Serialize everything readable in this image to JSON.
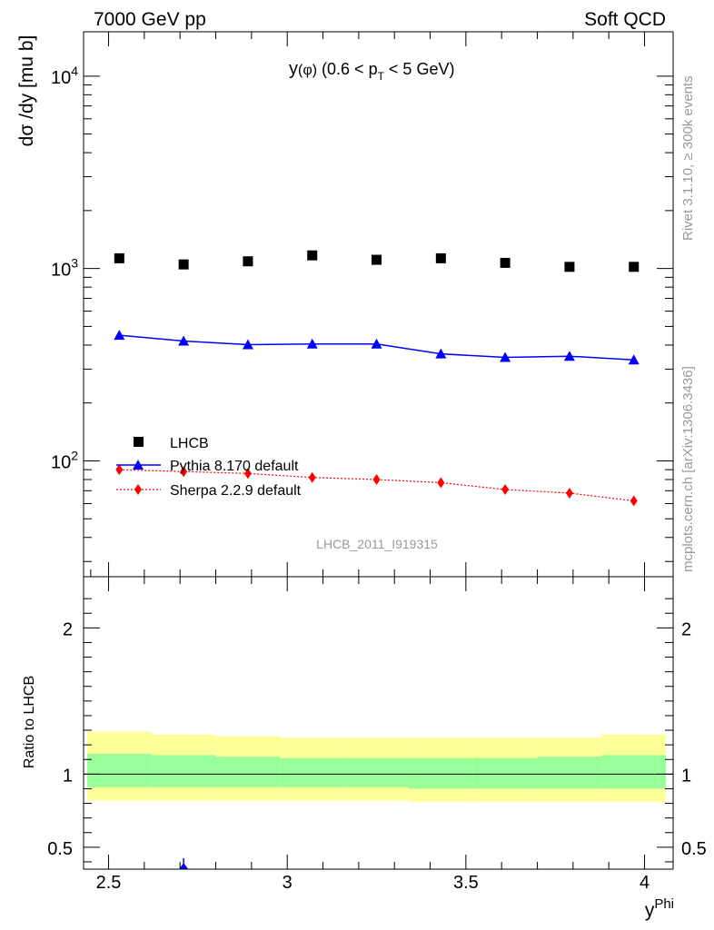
{
  "header": {
    "left": "7000 GeV pp",
    "right": "Soft QCD"
  },
  "side_labels": {
    "rivet": "Rivet 3.1.10, ≥ 300k events",
    "mcplots": "mcplots.cern.ch [arXiv:1306.3436]"
  },
  "chart_data": [
    {
      "type": "scatter",
      "panel": "main",
      "title": "y(φ) (0.6 < p_T < 5 GeV)",
      "title_parts": {
        "y": "y",
        "phi": "(φ)",
        "range_a": " (0.6 < p",
        "sub": "T",
        "range_b": " < 5 GeV)"
      },
      "ylabel": "dσ /dy [mu b]",
      "yscale": "log",
      "ylim": [
        25,
        17000
      ],
      "xlim": [
        2.43,
        4.08
      ],
      "ytick_labels": [
        {
          "value": 100,
          "base": "10",
          "exp": "2"
        },
        {
          "value": 1000,
          "base": "10",
          "exp": "3"
        },
        {
          "value": 10000,
          "base": "10",
          "exp": "4"
        }
      ],
      "analysis_label": "LHCB_2011_I919315",
      "x": [
        2.53,
        2.71,
        2.89,
        3.07,
        3.25,
        3.43,
        3.61,
        3.79,
        3.97
      ],
      "series": [
        {
          "name": "LHCB",
          "color": "#000000",
          "marker": "square",
          "values": [
            1130,
            1050,
            1090,
            1170,
            1110,
            1130,
            1070,
            1020,
            1020
          ]
        },
        {
          "name": "Pythia 8.170 default",
          "color": "#0000ff",
          "marker": "triangle",
          "line": "solid",
          "values": [
            450,
            420,
            402,
            405,
            405,
            360,
            345,
            350,
            335
          ]
        },
        {
          "name": "Sherpa 2.2.9 default",
          "color": "#ff0000",
          "marker": "diamond",
          "line": "dotted",
          "values": [
            90,
            88,
            86,
            82,
            80,
            77,
            71,
            68,
            62
          ]
        }
      ]
    },
    {
      "type": "area",
      "panel": "ratio",
      "ylabel": "Ratio to LHCB",
      "xlabel_base": "y",
      "xlabel_sup": "Phi",
      "ylim": [
        0.35,
        2.35
      ],
      "xlim": [
        2.43,
        4.08
      ],
      "yticks": [
        0.5,
        1,
        2
      ],
      "ytick_labels": [
        "0.5",
        "1",
        "2"
      ],
      "xticks": [
        2.5,
        3,
        3.5,
        4
      ],
      "xtick_labels": [
        "2.5",
        "3",
        "3.5",
        "4"
      ],
      "bins": [
        {
          "lo": 2.44,
          "hi": 2.62,
          "y_lo": 0.82,
          "y_hi": 1.29,
          "g_lo": 0.91,
          "g_hi": 1.14
        },
        {
          "lo": 2.62,
          "hi": 2.8,
          "y_lo": 0.82,
          "y_hi": 1.27,
          "g_lo": 0.91,
          "g_hi": 1.13
        },
        {
          "lo": 2.8,
          "hi": 2.98,
          "y_lo": 0.82,
          "y_hi": 1.26,
          "g_lo": 0.91,
          "g_hi": 1.12
        },
        {
          "lo": 2.98,
          "hi": 3.16,
          "y_lo": 0.82,
          "y_hi": 1.25,
          "g_lo": 0.91,
          "g_hi": 1.11
        },
        {
          "lo": 3.16,
          "hi": 3.34,
          "y_lo": 0.82,
          "y_hi": 1.25,
          "g_lo": 0.91,
          "g_hi": 1.11
        },
        {
          "lo": 3.34,
          "hi": 3.52,
          "y_lo": 0.81,
          "y_hi": 1.25,
          "g_lo": 0.9,
          "g_hi": 1.11
        },
        {
          "lo": 3.52,
          "hi": 3.7,
          "y_lo": 0.81,
          "y_hi": 1.25,
          "g_lo": 0.9,
          "g_hi": 1.11
        },
        {
          "lo": 3.7,
          "hi": 3.88,
          "y_lo": 0.81,
          "y_hi": 1.25,
          "g_lo": 0.9,
          "g_hi": 1.12
        },
        {
          "lo": 3.88,
          "hi": 4.06,
          "y_lo": 0.81,
          "y_hi": 1.27,
          "g_lo": 0.9,
          "g_hi": 1.13
        }
      ],
      "band_colors": {
        "outer": "#ffff99",
        "inner": "#99ff99"
      },
      "reference_line": 1.0,
      "offscale_marker": {
        "x": 2.71,
        "series": "Pythia 8.170 default",
        "color": "#0000ff"
      }
    }
  ]
}
